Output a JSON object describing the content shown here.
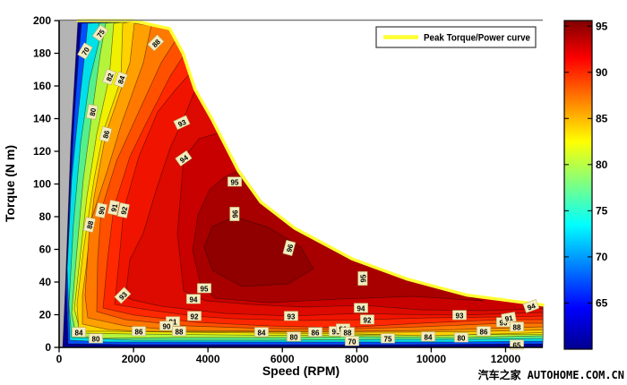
{
  "watermark": {
    "cn": "汽车之家",
    "en": "AUTOHOME.COM.CN"
  },
  "chart_data": {
    "type": "contour",
    "title": "",
    "xlabel": "Speed (RPM)",
    "ylabel": "Torque (N m)",
    "xlim": [
      0,
      13000
    ],
    "ylim": [
      0,
      200
    ],
    "xticks": [
      0,
      2000,
      4000,
      6000,
      8000,
      10000,
      12000
    ],
    "yticks": [
      0,
      20,
      40,
      60,
      80,
      100,
      120,
      140,
      160,
      180,
      200
    ],
    "grid": false,
    "legend": {
      "label": "Peak Torque/Power curve",
      "line_color": "#ffff33",
      "position": "top-right"
    },
    "colorbar": {
      "ticks": [
        65,
        70,
        75,
        80,
        85,
        90,
        95
      ],
      "vmin": 60,
      "vmax": 95.6,
      "colormap": "jet",
      "gradient_stops": [
        [
          "0%",
          "#7f0000"
        ],
        [
          "11.5%",
          "#ff0000"
        ],
        [
          "36.8%",
          "#ffff00"
        ],
        [
          "62.1%",
          "#00ffff"
        ],
        [
          "87.4%",
          "#0000ff"
        ],
        [
          "100%",
          "#00008f"
        ]
      ]
    },
    "contour_levels": [
      65,
      70,
      75,
      80,
      82,
      84,
      86,
      88,
      90,
      91,
      92,
      93,
      94,
      95,
      96
    ],
    "band_colors": {
      "base": "#000092",
      "65": "#0050ff",
      "70": "#00e0e8",
      "75": "#55f08c",
      "80": "#b4f53c",
      "82": "#f0f000",
      "84": "#ffd200",
      "86": "#ffa000",
      "88": "#ff7800",
      "90": "#ff5000",
      "91": "#ff2800",
      "92": "#f01400",
      "93": "#dc0a00",
      "94": "#c80000",
      "95": "#a80000",
      "96": "#900000"
    },
    "nodata_color": "#b4b4b4",
    "contour_line_color": "rgba(35,10,0,0.55)",
    "peak_curve_rpm_nm": [
      [
        500,
        200
      ],
      [
        1970,
        200
      ],
      [
        2970,
        195
      ],
      [
        3330,
        180
      ],
      [
        3650,
        158
      ],
      [
        4100,
        140
      ],
      [
        4820,
        108
      ],
      [
        5420,
        89
      ],
      [
        6330,
        73
      ],
      [
        7890,
        54
      ],
      [
        9330,
        42
      ],
      [
        10960,
        32
      ],
      [
        13000,
        26
      ]
    ],
    "label_format": [
      "value",
      "px_x",
      "px_y",
      "rotate_deg"
    ],
    "contour_labels": [
      [
        70,
        95,
        57,
        -60
      ],
      [
        75,
        112,
        37,
        -55
      ],
      [
        82,
        122,
        86,
        -70
      ],
      [
        84,
        135,
        89,
        -70
      ],
      [
        88,
        174,
        48,
        -45
      ],
      [
        80,
        103,
        125,
        -80
      ],
      [
        86,
        118,
        150,
        -75
      ],
      [
        93,
        203,
        137,
        -25
      ],
      [
        94,
        205,
        177,
        -35
      ],
      [
        88,
        100,
        251,
        -78
      ],
      [
        90,
        113,
        235,
        -78
      ],
      [
        91,
        127,
        232,
        -78
      ],
      [
        92,
        138,
        235,
        -78
      ],
      [
        95,
        262,
        203,
        0
      ],
      [
        96,
        262,
        239,
        -90
      ],
      [
        96,
        323,
        277,
        -75
      ],
      [
        93,
        137,
        330,
        -45
      ],
      [
        95,
        228,
        322,
        0
      ],
      [
        94,
        216,
        334,
        0
      ],
      [
        92,
        217,
        353,
        0
      ],
      [
        91,
        193,
        359,
        0
      ],
      [
        90,
        186,
        364,
        0
      ],
      [
        88,
        200,
        370,
        0
      ],
      [
        86,
        155,
        370,
        0
      ],
      [
        84,
        88,
        371,
        0
      ],
      [
        80,
        107,
        378,
        0
      ],
      [
        93,
        325,
        353,
        0
      ],
      [
        84,
        292,
        371,
        0
      ],
      [
        80,
        328,
        376,
        0
      ],
      [
        86,
        352,
        371,
        0
      ],
      [
        90,
        375,
        370,
        0
      ],
      [
        91,
        383,
        367,
        0
      ],
      [
        88,
        388,
        371,
        0
      ],
      [
        70,
        393,
        381,
        0
      ],
      [
        94,
        403,
        344,
        0
      ],
      [
        92,
        410,
        357,
        0
      ],
      [
        95,
        405,
        311,
        -90
      ],
      [
        75,
        433,
        378,
        0
      ],
      [
        84,
        478,
        376,
        0
      ],
      [
        93,
        513,
        352,
        0
      ],
      [
        80,
        515,
        377,
        0
      ],
      [
        86,
        540,
        370,
        0
      ],
      [
        90,
        562,
        360,
        0
      ],
      [
        91,
        568,
        355,
        -10
      ],
      [
        88,
        577,
        365,
        0
      ],
      [
        94,
        593,
        342,
        -20
      ],
      [
        65,
        577,
        385,
        0
      ]
    ]
  }
}
